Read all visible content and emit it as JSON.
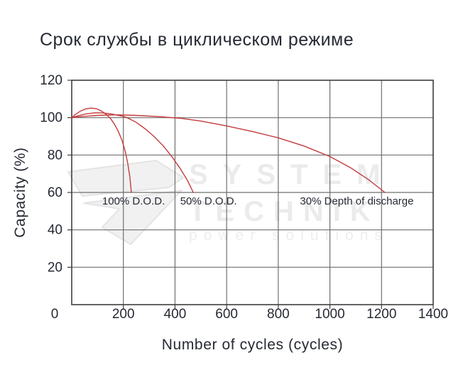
{
  "page": {
    "title": "Срок службы в циклическом режиме"
  },
  "watermark": {
    "line1": "SYSTEM",
    "line2": "TECHNIK",
    "line3": "power solutions",
    "logo": "system-technik-arrow-logo"
  },
  "chart_data": {
    "type": "line",
    "title": "Срок службы в циклическом режиме",
    "xlabel": "Number of cycles (cycles)",
    "ylabel": "Capacity (%)",
    "xlim": [
      0,
      1400
    ],
    "ylim": [
      0,
      120
    ],
    "xticks": [
      0,
      200,
      400,
      600,
      800,
      1000,
      1200,
      1400
    ],
    "yticks": [
      0,
      20,
      40,
      60,
      80,
      100,
      120
    ],
    "grid": true,
    "legend_position": "inline-annotations",
    "colors": {
      "curve": "#c43b3b",
      "grid": "#6f6f6f",
      "border": "#3e3e3e",
      "text": "#262a33",
      "watermark": "#ebebeb"
    },
    "series": [
      {
        "name": "100% D.O.D.",
        "points": [
          [
            0,
            100
          ],
          [
            15,
            101.8
          ],
          [
            35,
            103.6
          ],
          [
            55,
            104.7
          ],
          [
            75,
            105.1
          ],
          [
            95,
            104.8
          ],
          [
            115,
            103.6
          ],
          [
            135,
            101.6
          ],
          [
            150,
            99.6
          ],
          [
            165,
            96.6
          ],
          [
            180,
            92.8
          ],
          [
            195,
            87.8
          ],
          [
            207,
            82
          ],
          [
            217,
            75.5
          ],
          [
            225,
            68.5
          ],
          [
            231,
            60
          ]
        ]
      },
      {
        "name": "50% D.O.D.",
        "points": [
          [
            0,
            100
          ],
          [
            25,
            101.0
          ],
          [
            55,
            102.0
          ],
          [
            90,
            102.6
          ],
          [
            125,
            102.5
          ],
          [
            160,
            101.8
          ],
          [
            195,
            100.8
          ],
          [
            215,
            100
          ],
          [
            250,
            97.5
          ],
          [
            285,
            94
          ],
          [
            320,
            89.8
          ],
          [
            355,
            84.8
          ],
          [
            390,
            78.8
          ],
          [
            420,
            72.8
          ],
          [
            448,
            66.5
          ],
          [
            471,
            60
          ]
        ]
      },
      {
        "name": "30% Depth of discharge",
        "points": [
          [
            0,
            100
          ],
          [
            40,
            100.6
          ],
          [
            100,
            101.2
          ],
          [
            170,
            101.5
          ],
          [
            250,
            101.2
          ],
          [
            330,
            100.6
          ],
          [
            420,
            99.7
          ],
          [
            500,
            98.2
          ],
          [
            600,
            95.6
          ],
          [
            700,
            92.6
          ],
          [
            800,
            89.2
          ],
          [
            900,
            84.8
          ],
          [
            1000,
            79.2
          ],
          [
            1080,
            73.2
          ],
          [
            1150,
            66.8
          ],
          [
            1213,
            60
          ]
        ]
      }
    ],
    "annotations": [
      {
        "text": "100% D.O.D.",
        "x": 118,
        "y": 55.5,
        "anchor": "start"
      },
      {
        "text": "50% D.O.D.",
        "x": 420,
        "y": 55.5,
        "anchor": "start"
      },
      {
        "text": "30% Depth of discharge",
        "x": 884,
        "y": 55.5,
        "anchor": "start"
      }
    ]
  }
}
